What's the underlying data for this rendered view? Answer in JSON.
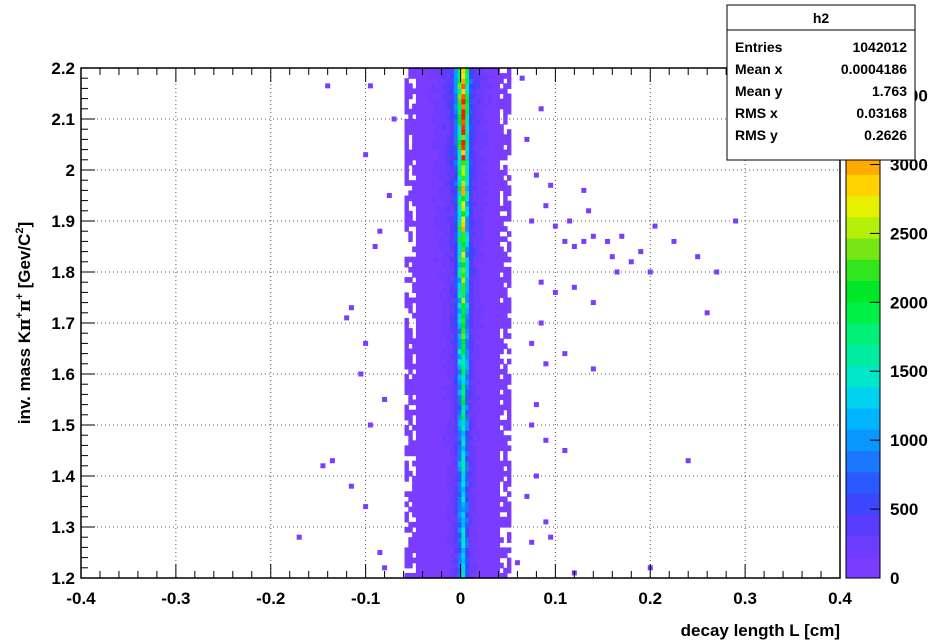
{
  "chart_data": {
    "type": "heatmap",
    "title": "",
    "xlabel": "decay length L [cm]",
    "ylabel_parts": [
      "inv. mass K",
      "π",
      "+",
      "π",
      "+",
      " [Gev/C",
      "2",
      "]"
    ],
    "xlim": [
      -0.4,
      0.4
    ],
    "ylim": [
      1.2,
      2.2
    ],
    "x_ticks": [
      "-0.4",
      "-0.3",
      "-0.2",
      "-0.1",
      "0",
      "0.1",
      "0.2",
      "0.3",
      "0.4"
    ],
    "y_ticks": [
      "1.2",
      "1.3",
      "1.4",
      "1.5",
      "1.6",
      "1.7",
      "1.8",
      "1.9",
      "2",
      "2.1",
      "2.2"
    ],
    "grid": true,
    "palette_ticks": [
      "0",
      "500",
      "1000",
      "1500",
      "2000",
      "2500",
      "3000",
      "3500"
    ],
    "palette_max": 3700,
    "profile": [
      {
        "x": -0.057,
        "w": 0.004,
        "count": 15
      },
      {
        "x": -0.053,
        "w": 0.004,
        "count": 25
      },
      {
        "x": -0.049,
        "w": 0.004,
        "count": 40
      },
      {
        "x": -0.045,
        "w": 0.004,
        "count": 60
      },
      {
        "x": -0.041,
        "w": 0.004,
        "count": 85
      },
      {
        "x": -0.037,
        "w": 0.004,
        "count": 110
      },
      {
        "x": -0.033,
        "w": 0.004,
        "count": 140
      },
      {
        "x": -0.029,
        "w": 0.004,
        "count": 170
      },
      {
        "x": -0.025,
        "w": 0.004,
        "count": 200
      },
      {
        "x": -0.021,
        "w": 0.004,
        "count": 240
      },
      {
        "x": -0.017,
        "w": 0.004,
        "count": 290
      },
      {
        "x": -0.013,
        "w": 0.004,
        "count": 380
      },
      {
        "x": -0.009,
        "w": 0.004,
        "count": 520
      },
      {
        "x": -0.005,
        "w": 0.004,
        "count": 900
      },
      {
        "x": -0.001,
        "w": 0.004,
        "count": 2200
      },
      {
        "x": 0.003,
        "w": 0.004,
        "count": 3500
      },
      {
        "x": 0.007,
        "w": 0.004,
        "count": 1800
      },
      {
        "x": 0.011,
        "w": 0.004,
        "count": 700
      },
      {
        "x": 0.015,
        "w": 0.004,
        "count": 420
      },
      {
        "x": 0.019,
        "w": 0.004,
        "count": 300
      },
      {
        "x": 0.023,
        "w": 0.004,
        "count": 240
      },
      {
        "x": 0.027,
        "w": 0.004,
        "count": 190
      },
      {
        "x": 0.031,
        "w": 0.004,
        "count": 150
      },
      {
        "x": 0.035,
        "w": 0.004,
        "count": 110
      },
      {
        "x": 0.039,
        "w": 0.004,
        "count": 80
      },
      {
        "x": 0.043,
        "w": 0.004,
        "count": 50
      },
      {
        "x": 0.047,
        "w": 0.004,
        "count": 30
      },
      {
        "x": 0.051,
        "w": 0.004,
        "count": 18
      }
    ],
    "y_peak": {
      "y": 2.2,
      "boost": 1.0,
      "floor": 0.35
    },
    "scatter_points": [
      [
        -0.14,
        2.165
      ],
      [
        -0.095,
        2.165
      ],
      [
        -0.1,
        2.03
      ],
      [
        -0.085,
        1.88
      ],
      [
        -0.09,
        1.85
      ],
      [
        -0.115,
        1.73
      ],
      [
        -0.12,
        1.71
      ],
      [
        -0.1,
        1.66
      ],
      [
        -0.105,
        1.6
      ],
      [
        -0.095,
        1.5
      ],
      [
        -0.135,
        1.43
      ],
      [
        -0.145,
        1.42
      ],
      [
        -0.115,
        1.38
      ],
      [
        -0.1,
        1.34
      ],
      [
        -0.17,
        1.28
      ],
      [
        -0.085,
        1.25
      ],
      [
        -0.08,
        1.22
      ],
      [
        -0.075,
        1.95
      ],
      [
        -0.07,
        2.1
      ],
      [
        -0.08,
        1.55
      ],
      [
        0.065,
        2.18
      ],
      [
        0.085,
        2.12
      ],
      [
        0.07,
        2.06
      ],
      [
        0.08,
        1.99
      ],
      [
        0.095,
        1.97
      ],
      [
        0.13,
        1.96
      ],
      [
        0.09,
        1.93
      ],
      [
        0.075,
        1.9
      ],
      [
        0.1,
        1.89
      ],
      [
        0.11,
        1.86
      ],
      [
        0.12,
        1.85
      ],
      [
        0.13,
        1.86
      ],
      [
        0.14,
        1.87
      ],
      [
        0.155,
        1.86
      ],
      [
        0.17,
        1.87
      ],
      [
        0.16,
        1.83
      ],
      [
        0.18,
        1.82
      ],
      [
        0.2,
        1.8
      ],
      [
        0.225,
        1.86
      ],
      [
        0.25,
        1.83
      ],
      [
        0.27,
        1.8
      ],
      [
        0.29,
        1.9
      ],
      [
        0.085,
        1.78
      ],
      [
        0.1,
        1.76
      ],
      [
        0.12,
        1.77
      ],
      [
        0.14,
        1.74
      ],
      [
        0.085,
        1.7
      ],
      [
        0.075,
        1.66
      ],
      [
        0.09,
        1.62
      ],
      [
        0.11,
        1.64
      ],
      [
        0.14,
        1.61
      ],
      [
        0.26,
        1.72
      ],
      [
        0.08,
        1.54
      ],
      [
        0.075,
        1.5
      ],
      [
        0.09,
        1.47
      ],
      [
        0.11,
        1.45
      ],
      [
        0.24,
        1.43
      ],
      [
        0.08,
        1.4
      ],
      [
        0.07,
        1.36
      ],
      [
        0.09,
        1.31
      ],
      [
        0.075,
        1.27
      ],
      [
        0.06,
        1.23
      ],
      [
        0.12,
        1.21
      ],
      [
        0.2,
        1.22
      ],
      [
        0.095,
        1.28
      ],
      [
        0.205,
        1.89
      ],
      [
        0.19,
        1.84
      ],
      [
        0.165,
        1.8
      ],
      [
        0.135,
        1.92
      ],
      [
        0.115,
        1.9
      ]
    ]
  },
  "stats_box": {
    "name": "h2",
    "rows": [
      {
        "label": "Entries",
        "value": "1042012"
      },
      {
        "label": "Mean x",
        "value": "0.0004186"
      },
      {
        "label": "Mean y",
        "value": "1.763"
      },
      {
        "label": "RMS x",
        "value": "0.03168"
      },
      {
        "label": "RMS y",
        "value": "0.2626"
      }
    ]
  },
  "colors": {
    "background": "#ffffff",
    "frame": "#000000",
    "grid": "#555555",
    "palette": [
      "#7a3cff",
      "#6e3cff",
      "#5a3cff",
      "#3c46ff",
      "#2a5aff",
      "#1a78ff",
      "#0a96ff",
      "#00b4ff",
      "#00d2f0",
      "#00e6c8",
      "#00eca0",
      "#00f078",
      "#00f046",
      "#00e628",
      "#32e61e",
      "#78e614",
      "#b4f00a",
      "#e6f000",
      "#ffd200",
      "#ffaa00",
      "#ff8200",
      "#ff5a00",
      "#ff3200",
      "#ff1400"
    ]
  }
}
